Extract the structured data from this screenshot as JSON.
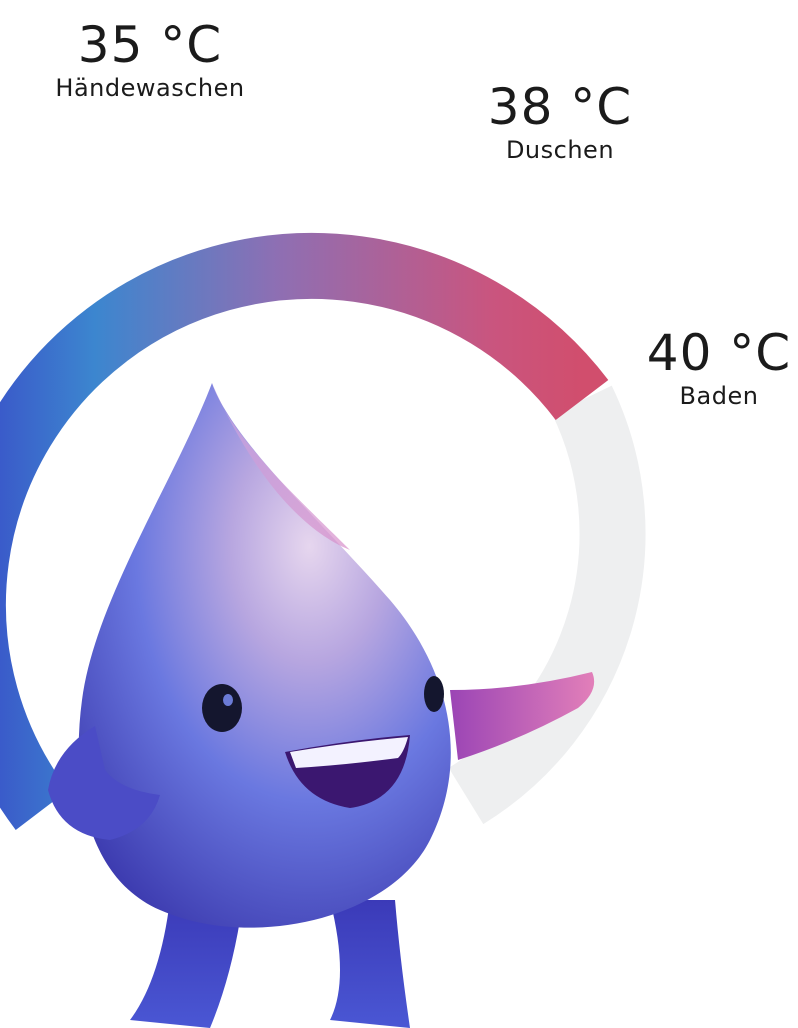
{
  "temperatures": [
    {
      "value": "35 °C",
      "label": "Händewaschen"
    },
    {
      "value": "38 °C",
      "label": "Duschen"
    },
    {
      "value": "40 °C",
      "label": "Baden"
    }
  ],
  "dial": {
    "gradient_colors": [
      "#3a4fc8",
      "#3c86cf",
      "#8e6fb3",
      "#c9557f",
      "#d14e6d"
    ],
    "track_color": "#eeeff0"
  },
  "mascot": {
    "icon": "water-drop-mascot-icon",
    "colors": {
      "body_top": "#d9c4e6",
      "body_mid": "#6f7be0",
      "body_bottom": "#3a37b0",
      "arm": "#c44fa4",
      "eye": "#14162e",
      "mouth": "#3b1770"
    }
  }
}
